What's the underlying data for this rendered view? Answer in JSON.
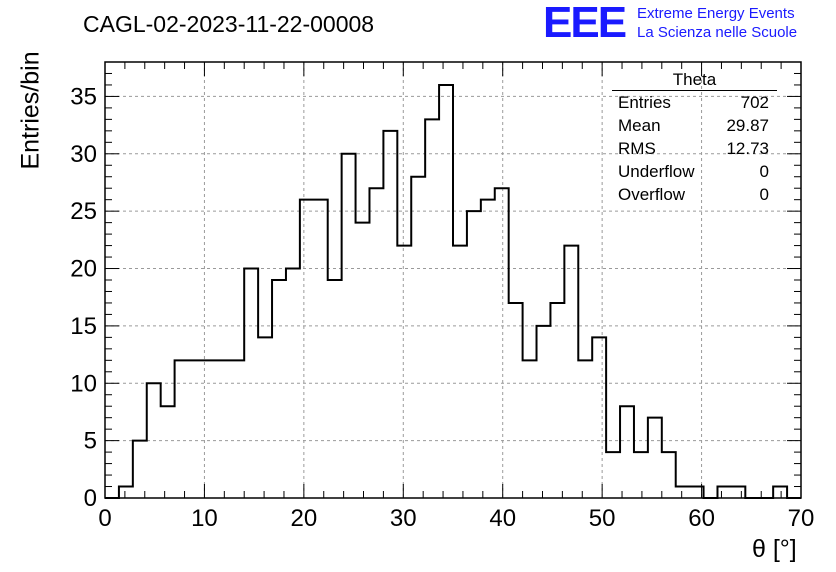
{
  "chart_data": {
    "type": "histogram",
    "title": "CAGL-02-2023-11-22-00008",
    "xlabel": "θ [°]",
    "ylabel": "Entries/bin",
    "xlim": [
      0,
      70
    ],
    "ylim": [
      0,
      38
    ],
    "xticks": [
      0,
      10,
      20,
      30,
      40,
      50,
      60,
      70
    ],
    "yticks": [
      0,
      5,
      10,
      15,
      20,
      25,
      30,
      35
    ],
    "grid": true,
    "bin_width": 1.4,
    "x_start": 0,
    "values": [
      0,
      1,
      5,
      10,
      8,
      12,
      12,
      12,
      12,
      12,
      20,
      14,
      19,
      20,
      26,
      26,
      19,
      30,
      24,
      27,
      32,
      22,
      28,
      33,
      36,
      22,
      25,
      26,
      27,
      17,
      12,
      15,
      17,
      22,
      12,
      14,
      4,
      8,
      4,
      7,
      4,
      1,
      1,
      0,
      1,
      1,
      0,
      0,
      1,
      0
    ],
    "stats_box": {
      "name": "Theta",
      "rows": [
        {
          "label": "Entries",
          "value": "702"
        },
        {
          "label": "Mean",
          "value": "29.87"
        },
        {
          "label": "RMS",
          "value": "12.73"
        },
        {
          "label": "Underflow",
          "value": "0"
        },
        {
          "label": "Overflow",
          "value": "0"
        }
      ]
    }
  },
  "logo": {
    "mark": "EEE",
    "line1": "Extreme Energy Events",
    "line2": "La Scienza nelle Scuole",
    "color": "#1a1aff"
  }
}
